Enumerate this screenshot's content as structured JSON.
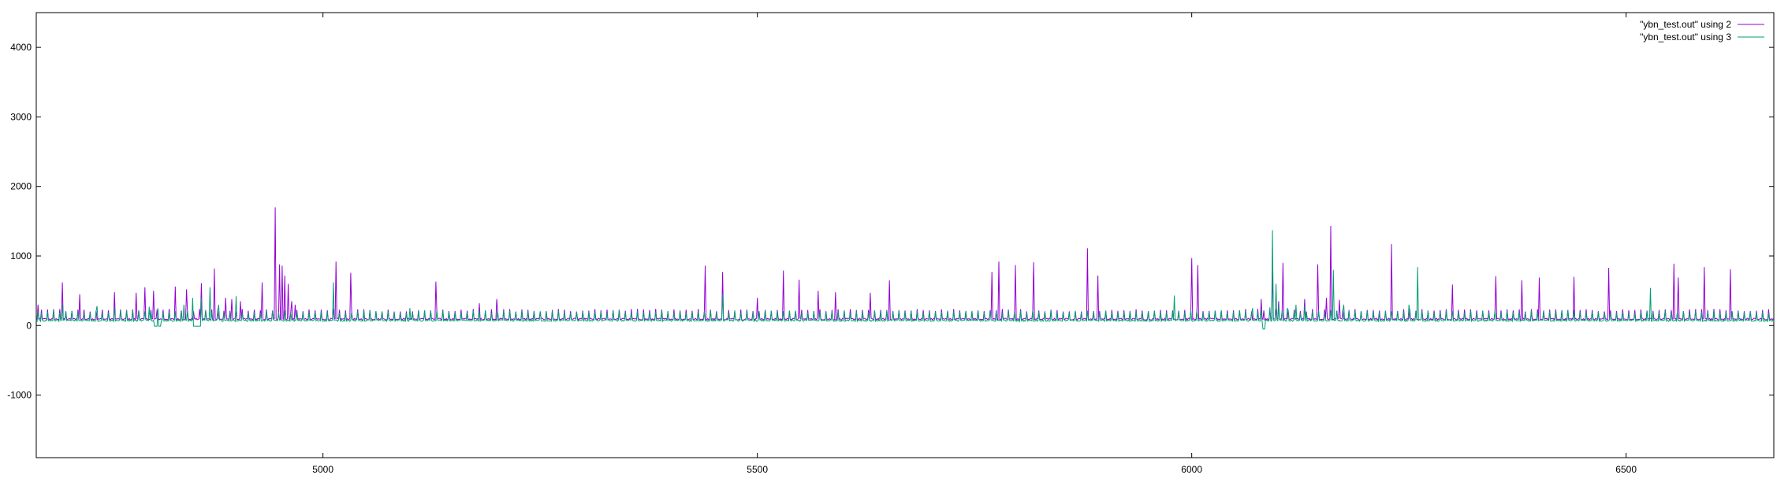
{
  "chart_data": {
    "type": "line",
    "title": "",
    "xlabel": "",
    "ylabel": "",
    "xlim": [
      4670,
      6670
    ],
    "ylim": [
      -1900,
      4500
    ],
    "xticks": [
      5000,
      5500,
      6000,
      6500
    ],
    "yticks": [
      -1000,
      0,
      1000,
      2000,
      3000,
      4000
    ],
    "grid": false,
    "legend_position": "top-right",
    "series": [
      {
        "name": "\"ybn_test.out\" using 2",
        "color": "#9400d3",
        "baseline": 80,
        "x": [
          4672,
          4700,
          4720,
          4760,
          4785,
          4795,
          4805,
          4830,
          4843,
          4860,
          4875,
          4888,
          4895,
          4905,
          4930,
          4945,
          4950,
          4953,
          4956,
          4960,
          4964,
          4968,
          5015,
          5032,
          5130,
          5180,
          5200,
          5440,
          5460,
          5500,
          5530,
          5548,
          5570,
          5590,
          5630,
          5652,
          5770,
          5778,
          5797,
          5818,
          5880,
          5892,
          6000,
          6007,
          6080,
          6093,
          6100,
          6105,
          6130,
          6145,
          6155,
          6160,
          6170,
          6230,
          6300,
          6350,
          6380,
          6400,
          6440,
          6480,
          6555,
          6560,
          6590,
          6620
        ],
        "values": [
          300,
          620,
          450,
          480,
          470,
          550,
          500,
          560,
          520,
          610,
          820,
          400,
          380,
          350,
          620,
          1700,
          880,
          860,
          720,
          600,
          350,
          300,
          920,
          760,
          630,
          320,
          380,
          860,
          770,
          400,
          790,
          660,
          500,
          480,
          470,
          650,
          770,
          920,
          870,
          910,
          1110,
          720,
          970,
          870,
          380,
          830,
          350,
          900,
          380,
          880,
          400,
          1430,
          370,
          1170,
          590,
          710,
          650,
          690,
          700,
          830,
          890,
          690,
          840,
          810
        ]
      },
      {
        "name": "\"ybn_test.out\" using 3",
        "color": "#009e73",
        "baseline": 60,
        "x": [
          4672,
          4700,
          4740,
          4760,
          4800,
          4810,
          4840,
          4850,
          4860,
          4870,
          4880,
          4900,
          5012,
          5100,
          5460,
          5980,
          6070,
          6080,
          6090,
          6093,
          6097,
          6100,
          6110,
          6120,
          6130,
          6163,
          6175,
          6250,
          6260,
          6528
        ],
        "values": [
          200,
          300,
          280,
          260,
          270,
          250,
          300,
          400,
          400,
          550,
          300,
          420,
          620,
          250,
          460,
          430,
          250,
          230,
          260,
          1370,
          600,
          280,
          250,
          300,
          280,
          800,
          300,
          300,
          840,
          540
        ]
      }
    ],
    "dips": [
      {
        "x_start": 4806,
        "x_end": 4813,
        "value": -10
      },
      {
        "x_start": 4850,
        "x_end": 4860,
        "value": -10
      },
      {
        "x_start": 6082,
        "x_end": 6084,
        "value": -50
      }
    ]
  }
}
